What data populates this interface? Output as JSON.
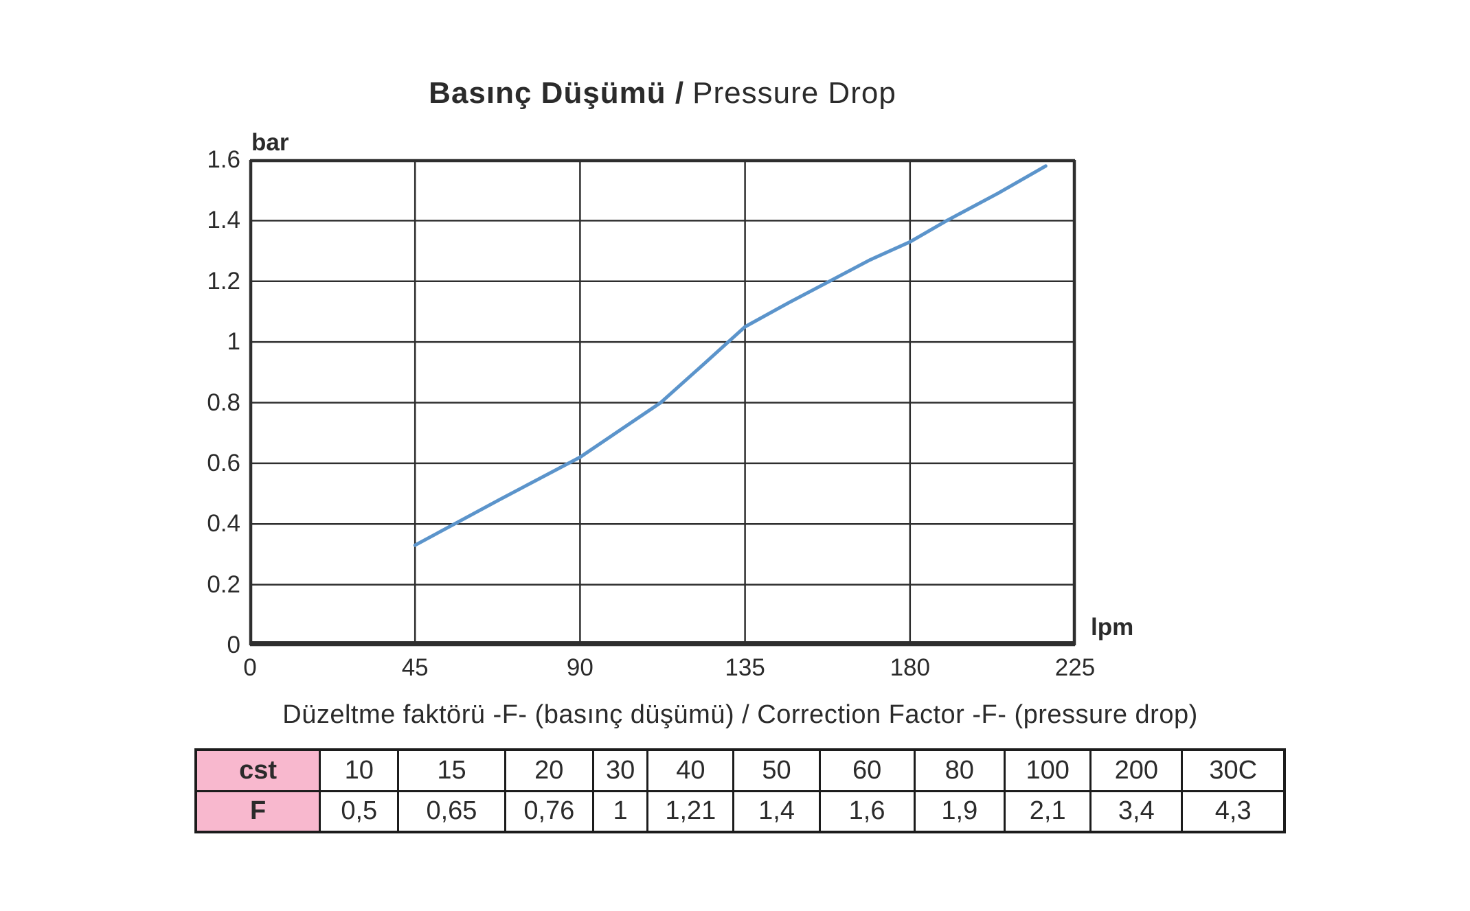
{
  "chart_data": {
    "type": "line",
    "title": "Basınç Düşümü / Pressure Drop",
    "title_bold": "Basınç Düşümü /",
    "title_regular": "Pressure Drop",
    "xlabel": "lpm",
    "ylabel": "bar",
    "xlim": [
      0,
      225
    ],
    "ylim": [
      0,
      1.6
    ],
    "xticks": [
      "0",
      "45",
      "90",
      "135",
      "180",
      "225"
    ],
    "yticks": [
      "0",
      "0.2",
      "0.4",
      "0.6",
      "0.8",
      "1",
      "1.2",
      "1.4",
      "1.6"
    ],
    "grid": true,
    "legend": "none",
    "line_color": "#5b94cb",
    "grid_color": "#2e2e2e",
    "series": [
      {
        "name": "pressure-drop-curve",
        "points": [
          [
            45,
            0.33
          ],
          [
            68,
            0.48
          ],
          [
            90,
            0.62
          ],
          [
            112,
            0.8
          ],
          [
            124,
            0.93
          ],
          [
            135,
            1.05
          ],
          [
            147,
            1.13
          ],
          [
            158,
            1.2
          ],
          [
            169,
            1.27
          ],
          [
            180,
            1.33
          ],
          [
            190,
            1.4
          ],
          [
            204,
            1.49
          ],
          [
            217,
            1.58
          ]
        ]
      }
    ]
  },
  "correction_table": {
    "title": "Düzeltme faktörü -F- (basınç düşümü) /  Correction Factor -F- (pressure drop)",
    "header_color": "#f8b8ce",
    "rows": [
      {
        "label": "cst",
        "values": [
          "10",
          "15",
          "20",
          "30",
          "40",
          "50",
          "60",
          "80",
          "100",
          "200",
          "30C"
        ]
      },
      {
        "label": "F",
        "values": [
          "0,5",
          "0,65",
          "0,76",
          "1",
          "1,21",
          "1,4",
          "1,6",
          "1,9",
          "2,1",
          "3,4",
          "4,3"
        ]
      }
    ]
  }
}
